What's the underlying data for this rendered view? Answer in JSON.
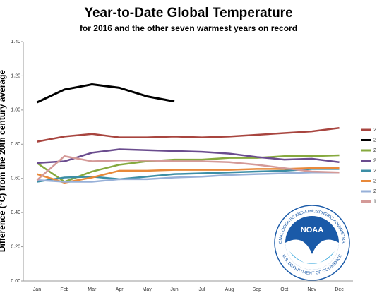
{
  "chart_data": {
    "type": "line",
    "title": "Year-to-Date Global Temperature",
    "subtitle": "for 2016 and the other seven warmest years on record",
    "y_label": "Difference (°C) from the 20th century average",
    "categories": [
      "Jan",
      "Feb",
      "Mar",
      "Apr",
      "May",
      "Jun",
      "Jul",
      "Aug",
      "Sep",
      "Oct",
      "Nov",
      "Dec"
    ],
    "ylim": [
      0,
      1.4
    ],
    "yticks": [
      {
        "value": 0,
        "label": "0.00"
      },
      {
        "value": 0.2,
        "label": "0.20"
      },
      {
        "value": 0.4,
        "label": "0.40"
      },
      {
        "value": 0.6,
        "label": "0.60"
      },
      {
        "value": 0.8,
        "label": "0.80"
      },
      {
        "value": 1.0,
        "label": "1.00"
      },
      {
        "value": 1.2,
        "label": "1.20"
      },
      {
        "value": 1.4,
        "label": "1.40"
      }
    ],
    "grid": false,
    "series": [
      {
        "name": "2",
        "color": "#a8453f",
        "values": [
          0.815,
          0.845,
          0.86,
          0.84,
          0.84,
          0.845,
          0.84,
          0.845,
          0.855,
          0.865,
          0.875,
          0.895
        ]
      },
      {
        "name": "2",
        "color": "#000000",
        "values": [
          1.045,
          1.12,
          1.15,
          1.13,
          1.08,
          1.05,
          null,
          null,
          null,
          null,
          null,
          null
        ]
      },
      {
        "name": "2",
        "color": "#86a93e",
        "values": [
          0.69,
          0.58,
          0.64,
          0.68,
          0.7,
          0.71,
          0.71,
          0.72,
          0.72,
          0.73,
          0.73,
          0.735
        ]
      },
      {
        "name": "2",
        "color": "#6a4c8e",
        "values": [
          0.69,
          0.7,
          0.75,
          0.77,
          0.765,
          0.76,
          0.755,
          0.745,
          0.725,
          0.71,
          0.715,
          0.695
        ]
      },
      {
        "name": "2",
        "color": "#3c8ea5",
        "values": [
          0.58,
          0.605,
          0.61,
          0.595,
          0.61,
          0.625,
          0.63,
          0.635,
          0.64,
          0.645,
          0.655,
          0.655
        ]
      },
      {
        "name": "2",
        "color": "#e8893a",
        "values": [
          0.625,
          0.575,
          0.605,
          0.645,
          0.645,
          0.65,
          0.65,
          0.65,
          0.655,
          0.655,
          0.66,
          0.66
        ]
      },
      {
        "name": "2",
        "color": "#97b0d8",
        "values": [
          0.59,
          0.58,
          0.58,
          0.595,
          0.595,
          0.605,
          0.61,
          0.62,
          0.625,
          0.63,
          0.635,
          0.635
        ]
      },
      {
        "name": "1",
        "color": "#d49a98",
        "values": [
          0.59,
          0.73,
          0.7,
          0.705,
          0.705,
          0.7,
          0.7,
          0.695,
          0.68,
          0.66,
          0.64,
          0.635
        ]
      }
    ]
  },
  "logo": {
    "label": "NOAA",
    "ring_top": "NATIONAL OCEANIC AND ATMOSPHERIC ADMINISTRATION",
    "ring_bottom": "U.S. DEPARTMENT OF COMMERCE"
  }
}
